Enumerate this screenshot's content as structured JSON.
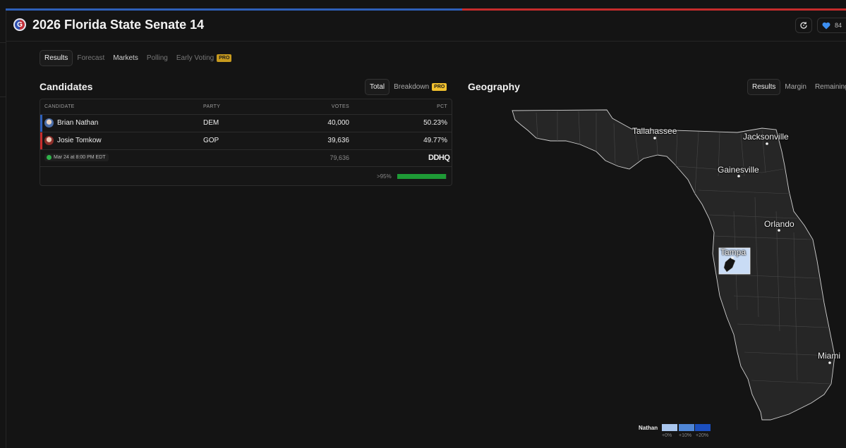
{
  "header": {
    "logo_letter": "G",
    "title": "2026 Florida State Senate 14",
    "refresh_icon": "refresh-icon",
    "like_icon": "heart-icon",
    "like_count": "84"
  },
  "tabs": [
    {
      "label": "Results"
    },
    {
      "label": "Forecast"
    },
    {
      "label": "Markets"
    },
    {
      "label": "Polling"
    },
    {
      "label": "Early Voting",
      "badge": "PRO"
    }
  ],
  "candidates_panel": {
    "title": "Candidates",
    "toggle_total": "Total",
    "toggle_breakdown": "Breakdown",
    "breakdown_badge": "PRO",
    "columns": [
      "CANDIDATE",
      "PARTY",
      "VOTES",
      "PCT"
    ],
    "rows": [
      {
        "name": "Brian Nathan",
        "party": "DEM",
        "votes": "40,000",
        "pct": "50.23%",
        "color": "#2e5fb8"
      },
      {
        "name": "Josie Tomkow",
        "party": "GOP",
        "votes": "39,636",
        "pct": "49.77%",
        "color": "#c62c2c"
      }
    ],
    "timestamp": "Mar 24 at 8:00 PM EDT",
    "total_votes": "79,636",
    "source": "DDHQ",
    "reporting_label": ">95%",
    "reporting_fraction": 0.98
  },
  "geography_panel": {
    "title": "Geography",
    "toggle_results": "Results",
    "toggle_margin": "Margin",
    "toggle_remaining": "Remaining",
    "cities": [
      "Tallahassee",
      "Jacksonville",
      "Gainesville",
      "Orlando",
      "Tampa",
      "Miami"
    ],
    "highlight_color": "#c9dcf5",
    "legend": {
      "candidate": "Nathan",
      "labels": [
        "+0%",
        "+10%",
        "+20%"
      ],
      "colors": [
        "#a9c6ee",
        "#4f86d6",
        "#1b4fbf"
      ]
    }
  }
}
